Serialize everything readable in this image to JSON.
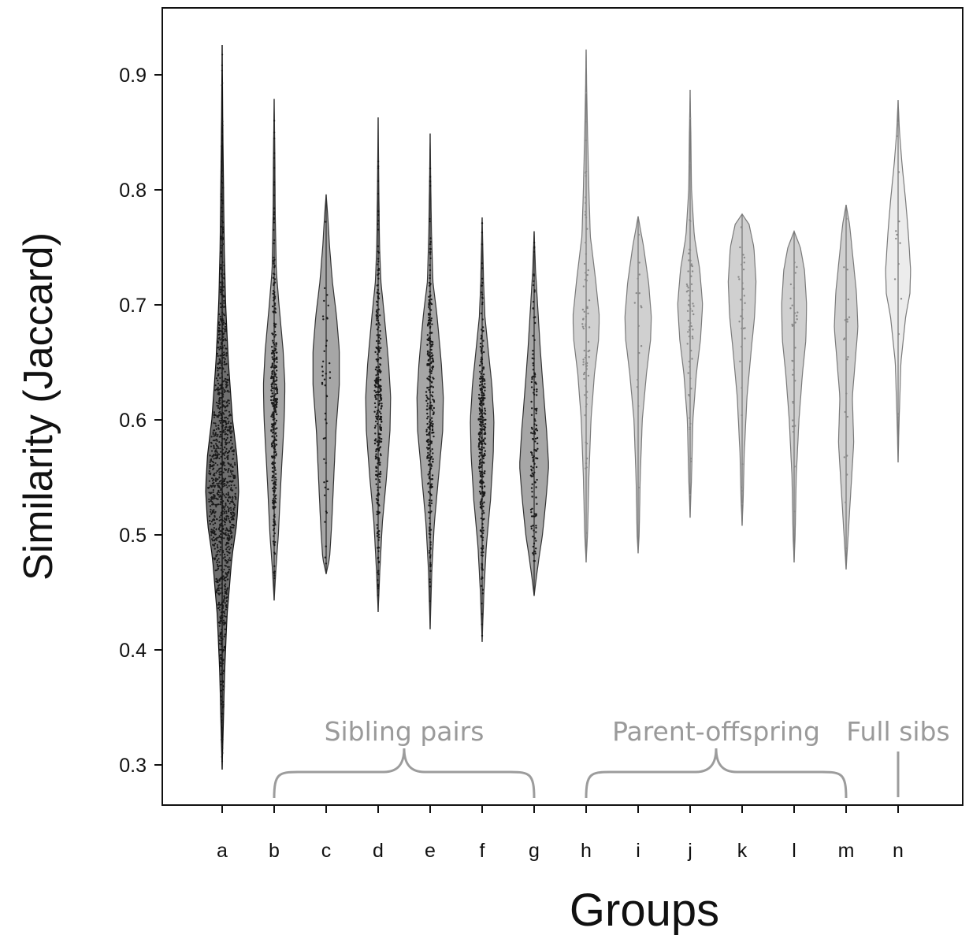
{
  "chart_data": {
    "type": "violin",
    "xlabel": "Groups",
    "ylabel": "Similarity (Jaccard)",
    "ylim": [
      0.26,
      0.98
    ],
    "yticks": [
      "0.3",
      "0.4",
      "0.5",
      "0.6",
      "0.7",
      "0.8",
      "0.9"
    ],
    "grid": false,
    "colors": {
      "dark": "#6f6f6f",
      "mid": "#a6a6a6",
      "light": "#d0d0d0",
      "lightest": "#ececec",
      "points": "#1a1a1a",
      "bracket": "#9c9c9c"
    },
    "categories": [
      "a",
      "b",
      "c",
      "d",
      "e",
      "f",
      "g",
      "h",
      "i",
      "j",
      "k",
      "l",
      "m",
      "n"
    ],
    "violins": [
      {
        "x": "a",
        "min": 0.296,
        "max": 0.926,
        "median": 0.53,
        "profile": [
          [
            0.296,
            0.0
          ],
          [
            0.33,
            0.03
          ],
          [
            0.38,
            0.07
          ],
          [
            0.43,
            0.14
          ],
          [
            0.48,
            0.28
          ],
          [
            0.51,
            0.42
          ],
          [
            0.54,
            0.48
          ],
          [
            0.57,
            0.42
          ],
          [
            0.6,
            0.3
          ],
          [
            0.65,
            0.18
          ],
          [
            0.7,
            0.1
          ],
          [
            0.75,
            0.06
          ],
          [
            0.8,
            0.04
          ],
          [
            0.85,
            0.02
          ],
          [
            0.926,
            0.0
          ]
        ],
        "tone": "dark",
        "points": 1200
      },
      {
        "x": "b",
        "min": 0.443,
        "max": 0.879,
        "median": 0.615,
        "profile": [
          [
            0.443,
            0.0
          ],
          [
            0.47,
            0.05
          ],
          [
            0.5,
            0.12
          ],
          [
            0.55,
            0.2
          ],
          [
            0.6,
            0.29
          ],
          [
            0.63,
            0.31
          ],
          [
            0.66,
            0.26
          ],
          [
            0.7,
            0.14
          ],
          [
            0.73,
            0.06
          ],
          [
            0.78,
            0.03
          ],
          [
            0.83,
            0.02
          ],
          [
            0.879,
            0.0
          ]
        ],
        "tone": "mid",
        "points": 340
      },
      {
        "x": "c",
        "min": 0.466,
        "max": 0.796,
        "median": 0.62,
        "profile": [
          [
            0.466,
            0.0
          ],
          [
            0.48,
            0.1
          ],
          [
            0.51,
            0.16
          ],
          [
            0.55,
            0.22
          ],
          [
            0.59,
            0.28
          ],
          [
            0.63,
            0.38
          ],
          [
            0.66,
            0.38
          ],
          [
            0.69,
            0.3
          ],
          [
            0.72,
            0.18
          ],
          [
            0.75,
            0.1
          ],
          [
            0.78,
            0.04
          ],
          [
            0.796,
            0.0
          ]
        ],
        "tone": "mid",
        "points": 45
      },
      {
        "x": "d",
        "min": 0.433,
        "max": 0.863,
        "median": 0.61,
        "profile": [
          [
            0.433,
            0.0
          ],
          [
            0.47,
            0.05
          ],
          [
            0.51,
            0.12
          ],
          [
            0.55,
            0.24
          ],
          [
            0.59,
            0.34
          ],
          [
            0.62,
            0.36
          ],
          [
            0.65,
            0.3
          ],
          [
            0.69,
            0.18
          ],
          [
            0.72,
            0.08
          ],
          [
            0.75,
            0.04
          ],
          [
            0.8,
            0.02
          ],
          [
            0.863,
            0.0
          ]
        ],
        "tone": "mid",
        "points": 320
      },
      {
        "x": "e",
        "min": 0.418,
        "max": 0.849,
        "median": 0.61,
        "profile": [
          [
            0.418,
            0.0
          ],
          [
            0.47,
            0.05
          ],
          [
            0.51,
            0.12
          ],
          [
            0.55,
            0.24
          ],
          [
            0.59,
            0.36
          ],
          [
            0.62,
            0.38
          ],
          [
            0.65,
            0.32
          ],
          [
            0.69,
            0.2
          ],
          [
            0.72,
            0.08
          ],
          [
            0.76,
            0.04
          ],
          [
            0.8,
            0.02
          ],
          [
            0.849,
            0.0
          ]
        ],
        "tone": "mid",
        "points": 300
      },
      {
        "x": "f",
        "min": 0.407,
        "max": 0.776,
        "median": 0.59,
        "profile": [
          [
            0.407,
            0.0
          ],
          [
            0.45,
            0.05
          ],
          [
            0.49,
            0.12
          ],
          [
            0.53,
            0.24
          ],
          [
            0.57,
            0.32
          ],
          [
            0.6,
            0.34
          ],
          [
            0.63,
            0.28
          ],
          [
            0.66,
            0.18
          ],
          [
            0.69,
            0.08
          ],
          [
            0.72,
            0.04
          ],
          [
            0.75,
            0.02
          ],
          [
            0.776,
            0.0
          ]
        ],
        "tone": "mid",
        "points": 320
      },
      {
        "x": "g",
        "min": 0.447,
        "max": 0.764,
        "median": 0.565,
        "profile": [
          [
            0.447,
            0.0
          ],
          [
            0.46,
            0.05
          ],
          [
            0.48,
            0.14
          ],
          [
            0.5,
            0.24
          ],
          [
            0.53,
            0.34
          ],
          [
            0.56,
            0.42
          ],
          [
            0.59,
            0.36
          ],
          [
            0.62,
            0.28
          ],
          [
            0.66,
            0.18
          ],
          [
            0.7,
            0.1
          ],
          [
            0.73,
            0.04
          ],
          [
            0.764,
            0.0
          ]
        ],
        "tone": "mid",
        "points": 140
      },
      {
        "x": "h",
        "min": 0.476,
        "max": 0.922,
        "median": 0.68,
        "profile": [
          [
            0.476,
            0.0
          ],
          [
            0.5,
            0.04
          ],
          [
            0.55,
            0.08
          ],
          [
            0.6,
            0.14
          ],
          [
            0.64,
            0.24
          ],
          [
            0.67,
            0.36
          ],
          [
            0.69,
            0.38
          ],
          [
            0.72,
            0.28
          ],
          [
            0.76,
            0.12
          ],
          [
            0.8,
            0.08
          ],
          [
            0.85,
            0.04
          ],
          [
            0.88,
            0.02
          ],
          [
            0.922,
            0.0
          ]
        ],
        "tone": "light",
        "points": 70
      },
      {
        "x": "i",
        "min": 0.484,
        "max": 0.777,
        "median": 0.67,
        "profile": [
          [
            0.484,
            0.0
          ],
          [
            0.5,
            0.03
          ],
          [
            0.55,
            0.06
          ],
          [
            0.6,
            0.12
          ],
          [
            0.64,
            0.24
          ],
          [
            0.67,
            0.36
          ],
          [
            0.69,
            0.38
          ],
          [
            0.72,
            0.3
          ],
          [
            0.75,
            0.16
          ],
          [
            0.777,
            0.0
          ]
        ],
        "tone": "light",
        "points": 16
      },
      {
        "x": "j",
        "min": 0.515,
        "max": 0.887,
        "median": 0.69,
        "profile": [
          [
            0.515,
            0.0
          ],
          [
            0.55,
            0.04
          ],
          [
            0.6,
            0.08
          ],
          [
            0.64,
            0.18
          ],
          [
            0.67,
            0.3
          ],
          [
            0.7,
            0.36
          ],
          [
            0.73,
            0.28
          ],
          [
            0.76,
            0.12
          ],
          [
            0.8,
            0.04
          ],
          [
            0.85,
            0.02
          ],
          [
            0.887,
            0.0
          ]
        ],
        "tone": "light",
        "points": 60
      },
      {
        "x": "k",
        "min": 0.508,
        "max": 0.779,
        "median": 0.7,
        "profile": [
          [
            0.508,
            0.0
          ],
          [
            0.53,
            0.03
          ],
          [
            0.57,
            0.06
          ],
          [
            0.62,
            0.14
          ],
          [
            0.66,
            0.26
          ],
          [
            0.69,
            0.36
          ],
          [
            0.72,
            0.4
          ],
          [
            0.75,
            0.34
          ],
          [
            0.77,
            0.2
          ],
          [
            0.779,
            0.0
          ]
        ],
        "tone": "light",
        "points": 30
      },
      {
        "x": "l",
        "min": 0.476,
        "max": 0.764,
        "median": 0.68,
        "profile": [
          [
            0.476,
            0.0
          ],
          [
            0.5,
            0.03
          ],
          [
            0.55,
            0.06
          ],
          [
            0.6,
            0.14
          ],
          [
            0.64,
            0.24
          ],
          [
            0.67,
            0.34
          ],
          [
            0.7,
            0.36
          ],
          [
            0.73,
            0.3
          ],
          [
            0.75,
            0.18
          ],
          [
            0.764,
            0.0
          ]
        ],
        "tone": "light",
        "points": 30
      },
      {
        "x": "m",
        "min": 0.47,
        "max": 0.787,
        "median": 0.66,
        "profile": [
          [
            0.47,
            0.0
          ],
          [
            0.5,
            0.06
          ],
          [
            0.54,
            0.14
          ],
          [
            0.58,
            0.22
          ],
          [
            0.62,
            0.18
          ],
          [
            0.65,
            0.26
          ],
          [
            0.68,
            0.34
          ],
          [
            0.71,
            0.3
          ],
          [
            0.74,
            0.2
          ],
          [
            0.77,
            0.1
          ],
          [
            0.787,
            0.0
          ]
        ],
        "tone": "light",
        "points": 20
      },
      {
        "x": "n",
        "min": 0.563,
        "max": 0.878,
        "median": 0.72,
        "profile": [
          [
            0.563,
            0.0
          ],
          [
            0.6,
            0.03
          ],
          [
            0.65,
            0.08
          ],
          [
            0.69,
            0.22
          ],
          [
            0.71,
            0.34
          ],
          [
            0.73,
            0.36
          ],
          [
            0.76,
            0.3
          ],
          [
            0.79,
            0.22
          ],
          [
            0.82,
            0.12
          ],
          [
            0.85,
            0.04
          ],
          [
            0.878,
            0.0
          ]
        ],
        "tone": "lightest",
        "points": 14
      }
    ],
    "annotations": [
      {
        "text": "Sibling pairs",
        "from": "b",
        "to": "g",
        "type": "brace"
      },
      {
        "text": "Parent-offspring",
        "from": "h",
        "to": "m",
        "type": "brace"
      },
      {
        "text": "Full sibs",
        "from": "n",
        "to": "n",
        "type": "line"
      }
    ]
  }
}
